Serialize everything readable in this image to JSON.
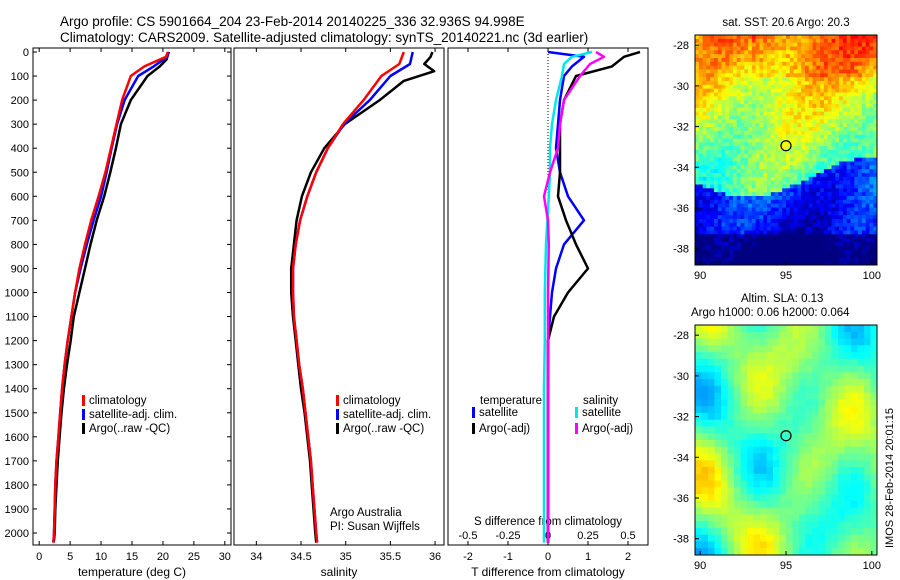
{
  "header": {
    "line1": "Argo profile: CS 5901664_204 23-Feb-2014 20140225_336 32.936S 94.998E",
    "line2": "Climatology: CARS2009. Satellite-adjusted climatology: synTS_20140221.nc (3d earlier)"
  },
  "colors": {
    "red": "#ff0000",
    "blue": "#0000ff",
    "black": "#000000",
    "cyan": "#00e5ee",
    "magenta": "#ff00ff"
  },
  "chart_data": [
    {
      "type": "line",
      "xlabel": "temperature (deg C)",
      "ylabel": "",
      "xlim": [
        -1,
        31
      ],
      "ylim": [
        2075,
        -5
      ],
      "xticks": [
        "0",
        "5",
        "10",
        "15",
        "20",
        "25",
        "30"
      ],
      "yticks": [
        "0",
        "100",
        "200",
        "300",
        "400",
        "500",
        "600",
        "700",
        "800",
        "900",
        "1000",
        "1100",
        "1200",
        "1300",
        "1400",
        "1500",
        "1600",
        "1700",
        "1800",
        "1900",
        "2000"
      ],
      "legend": [
        "climatology",
        "satellite-adj. clim.",
        "Argo(..raw -QC)"
      ],
      "legend_position": "bottom-right",
      "series": [
        {
          "name": "climatology",
          "color": "red",
          "x": [
            20.8,
            20.5,
            17,
            14.8,
            13.4,
            12.5,
            11.6,
            10.7,
            9.6,
            8.4,
            7.4,
            6.5,
            5.8,
            5.2,
            4.6,
            4.1,
            3.7,
            3.4,
            3.1,
            2.8,
            2.6,
            2.5,
            2.4,
            2.3
          ],
          "y": [
            0,
            20,
            60,
            100,
            200,
            300,
            400,
            500,
            600,
            700,
            800,
            900,
            1000,
            1100,
            1200,
            1300,
            1400,
            1500,
            1600,
            1700,
            1800,
            1900,
            2000,
            2040
          ]
        },
        {
          "name": "satellite-adj. clim.",
          "color": "blue",
          "x": [
            20.9,
            20.7,
            18.5,
            16,
            13.8,
            12.6,
            11.7,
            10.9,
            10,
            8.8,
            7.7,
            6.7,
            5.8,
            5.2,
            4.6,
            4.1,
            3.7,
            3.4,
            3.1,
            2.8,
            2.6,
            2.5,
            2.4,
            2.3
          ],
          "y": [
            0,
            20,
            60,
            100,
            200,
            300,
            400,
            500,
            600,
            700,
            800,
            900,
            1000,
            1100,
            1200,
            1300,
            1400,
            1500,
            1600,
            1700,
            1800,
            1900,
            2000,
            2040
          ]
        },
        {
          "name": "Argo(..raw -QC)",
          "color": "black",
          "x": [
            21,
            20.8,
            20.6,
            19.5,
            17.5,
            14.8,
            13.2,
            12.4,
            11.5,
            10.5,
            9.3,
            8.3,
            7.4,
            6.5,
            5.6,
            5.1,
            4.5,
            4,
            3.6,
            3.3,
            3,
            2.8,
            2.6,
            2.5,
            2.4,
            2.3
          ],
          "y": [
            0,
            10,
            30,
            60,
            100,
            200,
            300,
            400,
            500,
            600,
            700,
            800,
            900,
            1000,
            1100,
            1200,
            1300,
            1400,
            1500,
            1600,
            1700,
            1800,
            1900,
            2000,
            2030,
            2040
          ]
        }
      ]
    },
    {
      "type": "line",
      "xlabel": "salinity",
      "xlim": [
        33.75,
        36.1
      ],
      "ylim": [
        2075,
        -5
      ],
      "xticks": [
        "34",
        "34.5",
        "35",
        "35.5",
        "36"
      ],
      "legend": [
        "climatology",
        "satellite-adj. clim.",
        "Argo(..raw -QC)"
      ],
      "legend_position": "bottom-right",
      "annotation": [
        "Argo Australia",
        "PI: Susan Wijffels"
      ],
      "series": [
        {
          "name": "climatology",
          "color": "red",
          "x": [
            35.65,
            35.6,
            35.4,
            35.2,
            34.97,
            34.8,
            34.67,
            34.57,
            34.49,
            34.44,
            34.41,
            34.41,
            34.42,
            34.45,
            34.48,
            34.52,
            34.55,
            34.58,
            34.61,
            34.63,
            34.65,
            34.67,
            34.68
          ],
          "y": [
            0,
            50,
            100,
            200,
            300,
            400,
            500,
            600,
            700,
            800,
            900,
            1000,
            1100,
            1200,
            1300,
            1400,
            1500,
            1600,
            1700,
            1800,
            1900,
            2000,
            2040
          ]
        },
        {
          "name": "satellite-adj. clim.",
          "color": "blue",
          "x": [
            35.75,
            35.72,
            35.5,
            35.27,
            34.98,
            34.8,
            34.67,
            34.57,
            34.49,
            34.44,
            34.41,
            34.41,
            34.42,
            34.45,
            34.48,
            34.52,
            34.55,
            34.58,
            34.61,
            34.63,
            34.65,
            34.67,
            34.68
          ],
          "y": [
            0,
            50,
            100,
            200,
            300,
            400,
            500,
            600,
            700,
            800,
            900,
            1000,
            1100,
            1200,
            1300,
            1400,
            1500,
            1600,
            1700,
            1800,
            1900,
            2000,
            2040
          ]
        },
        {
          "name": "Argo(..raw -QC)",
          "color": "black",
          "x": [
            35.97,
            35.95,
            35.88,
            35.99,
            35.65,
            35.38,
            34.99,
            34.76,
            34.61,
            34.51,
            34.45,
            34.42,
            34.39,
            34.39,
            34.41,
            34.44,
            34.47,
            34.5,
            34.54,
            34.57,
            34.6,
            34.62,
            34.64,
            34.66,
            34.67
          ],
          "y": [
            0,
            20,
            50,
            80,
            120,
            200,
            300,
            400,
            500,
            600,
            700,
            800,
            900,
            1000,
            1100,
            1200,
            1300,
            1400,
            1500,
            1600,
            1700,
            1800,
            1900,
            2000,
            2040
          ]
        }
      ]
    },
    {
      "type": "line",
      "xlabel": "T difference from climatology",
      "xlabel2": "S difference from climatology",
      "xlim": [
        -2.5,
        2.5
      ],
      "ylim": [
        2075,
        -5
      ],
      "xticks": [
        "-2",
        "-1",
        "0",
        "1",
        "2"
      ],
      "xticks2": [
        "-0.5",
        "-0.25",
        "0",
        "0.25",
        "0.5"
      ],
      "legend_titles": [
        "temperature",
        "salinity"
      ],
      "legend": [
        "satellite",
        "Argo(-adj)",
        "satellite",
        "Argo(-adj)"
      ],
      "series": [
        {
          "name": "satellite",
          "quantity": "temperature",
          "color": "blue",
          "x": [
            0,
            0.9,
            0.6,
            0.4,
            0.3,
            0.25,
            0.2,
            0.3,
            0.5,
            0.9,
            0.4,
            0.2,
            0.1,
            0.05,
            0,
            0,
            0,
            0,
            0,
            0
          ],
          "y": [
            0,
            20,
            60,
            100,
            200,
            300,
            400,
            500,
            600,
            700,
            800,
            900,
            1000,
            1100,
            1200,
            1400,
            1600,
            1800,
            1900,
            2040
          ]
        },
        {
          "name": "Argo(-adj)",
          "quantity": "temperature",
          "color": "black",
          "x": [
            2.3,
            1.9,
            1.6,
            0.7,
            0.4,
            0.3,
            0.3,
            0.3,
            0.25,
            0.45,
            0.7,
            1,
            0.5,
            0.15,
            0,
            0,
            0,
            0,
            0,
            0,
            0
          ],
          "y": [
            0,
            20,
            60,
            100,
            200,
            300,
            400,
            500,
            600,
            700,
            800,
            900,
            1000,
            1100,
            1200,
            1300,
            1500,
            1700,
            1900,
            2000,
            2040
          ]
        },
        {
          "name": "satellite",
          "quantity": "salinity",
          "color": "cyan",
          "x": [
            1.1,
            0.6,
            0.4,
            0.35,
            0.2,
            0.1,
            0.05,
            0.05,
            0.02,
            -0.05,
            -0.08,
            -0.08,
            -0.1,
            -0.1,
            -0.1,
            -0.1
          ],
          "y": [
            0,
            20,
            50,
            100,
            200,
            300,
            400,
            500,
            600,
            800,
            1000,
            1200,
            1400,
            1600,
            1800,
            2040
          ]
        },
        {
          "name": "Argo(-adj)",
          "quantity": "salinity",
          "color": "magenta",
          "x": [
            1.2,
            1.4,
            1.05,
            0.8,
            0.4,
            0.3,
            0.25,
            0.05,
            -0.1,
            0,
            0.02,
            0,
            0,
            0,
            0,
            0
          ],
          "y": [
            0,
            20,
            50,
            100,
            200,
            300,
            400,
            500,
            600,
            700,
            800,
            1000,
            1200,
            1500,
            1800,
            2040
          ]
        }
      ]
    },
    {
      "type": "heatmap",
      "title": "sat. SST: 20.6  Argo: 20.3",
      "xlim": [
        89.7,
        100.3
      ],
      "ylim": [
        -38.8,
        -27.5
      ],
      "xticks": [
        "90",
        "95",
        "100"
      ],
      "yticks": [
        "-28",
        "-30",
        "-32",
        "-34",
        "-36",
        "-38"
      ],
      "marker": {
        "lon": 95.0,
        "lat": -32.94
      }
    },
    {
      "type": "heatmap",
      "title": "Altim. SLA: 0.13",
      "subtitle": "Argo h1000: 0.06  h2000: 0.064",
      "xlim": [
        89.7,
        100.3
      ],
      "ylim": [
        -38.8,
        -27.5
      ],
      "xticks": [
        "90",
        "95",
        "100"
      ],
      "yticks": [
        "-28",
        "-30",
        "-32",
        "-34",
        "-36",
        "-38"
      ],
      "marker": {
        "lon": 95.0,
        "lat": -32.94
      }
    }
  ],
  "footer": {
    "stamp": "IMOS 28-Feb-2014 20:01:15"
  }
}
